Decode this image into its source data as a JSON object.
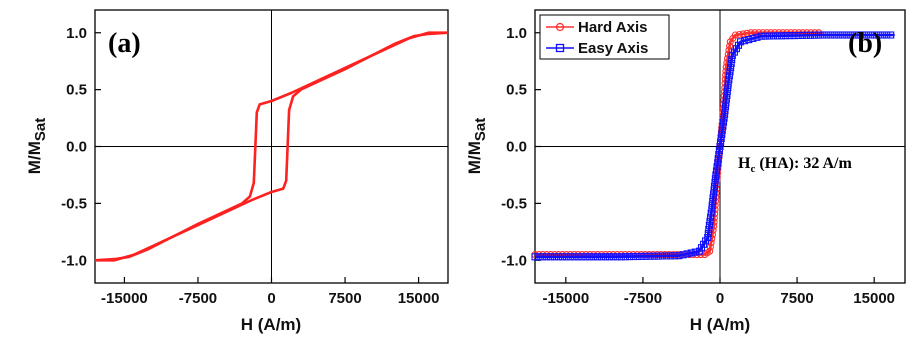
{
  "chart_data": [
    {
      "type": "line",
      "panel_label": "(a)",
      "xlabel": "H (A/m)",
      "ylabel": "M/M",
      "ylabel_sub": "Sat",
      "xlim": [
        -18000,
        18000
      ],
      "ylim": [
        -1.2,
        1.2
      ],
      "xticks": [
        -15000,
        -7500,
        0,
        7500,
        15000
      ],
      "xtick_labels": [
        "-15000",
        "-7500",
        "0",
        "7500",
        "15000"
      ],
      "yticks": [
        1.0,
        0.5,
        0.0,
        -0.5,
        -1.0
      ],
      "ytick_labels": [
        "1.0",
        "0.5",
        "0.0",
        "-0.5",
        "-1.0"
      ],
      "color": "#ff2020",
      "series": [
        {
          "branch": "descending",
          "x": [
            18000,
            16000,
            14000,
            12000,
            10000,
            8000,
            6000,
            4000,
            2000,
            0,
            -1200,
            -1500,
            -1800,
            -2200,
            -3000,
            -5000,
            -7500,
            -10000,
            -12500,
            -14500,
            -16000,
            -18000
          ],
          "y": [
            1.0,
            1.0,
            0.95,
            0.87,
            0.79,
            0.71,
            0.63,
            0.55,
            0.47,
            0.4,
            0.37,
            0.3,
            -0.32,
            -0.44,
            -0.5,
            -0.58,
            -0.68,
            -0.79,
            -0.9,
            -0.97,
            -0.99,
            -1.0
          ]
        },
        {
          "branch": "ascending",
          "x": [
            -18000,
            -16000,
            -14000,
            -12000,
            -10000,
            -8000,
            -6000,
            -4000,
            -2000,
            0,
            1200,
            1500,
            1800,
            2200,
            3000,
            5000,
            7500,
            10000,
            12500,
            14500,
            16000,
            18000
          ],
          "y": [
            -1.0,
            -1.0,
            -0.95,
            -0.87,
            -0.79,
            -0.71,
            -0.63,
            -0.55,
            -0.47,
            -0.4,
            -0.37,
            -0.3,
            0.32,
            0.44,
            0.5,
            0.58,
            0.68,
            0.79,
            0.9,
            0.97,
            0.99,
            1.0
          ]
        }
      ]
    },
    {
      "type": "line",
      "panel_label": "(b)",
      "xlabel": "H (A/m)",
      "ylabel": "M/M",
      "ylabel_sub": "Sat",
      "xlim": [
        -18000,
        18000
      ],
      "ylim": [
        -1.2,
        1.2
      ],
      "xticks": [
        -15000,
        -7500,
        0,
        7500,
        15000
      ],
      "xtick_labels": [
        "-15000",
        "-7500",
        "0",
        "7500",
        "15000"
      ],
      "yticks": [
        1.0,
        0.5,
        0.0,
        -0.5,
        -1.0
      ],
      "ytick_labels": [
        "1.0",
        "0.5",
        "0.0",
        "-0.5",
        "-1.0"
      ],
      "annotation": {
        "main": "H",
        "sub": "c",
        "rest": " (HA): 32 A/m"
      },
      "legend_position": "top-left",
      "series": [
        {
          "name": "Hard Axis",
          "color": "#ff3030",
          "marker": "circle",
          "x": [
            -18000,
            -10000,
            -3000,
            -1500,
            -1000,
            -600,
            -300,
            0,
            300,
            600,
            1000,
            1500,
            3000,
            10000
          ],
          "y": [
            -0.95,
            -0.95,
            -0.95,
            -0.95,
            -0.92,
            -0.7,
            -0.3,
            0.0,
            0.3,
            0.7,
            0.92,
            0.98,
            1.0,
            1.0
          ]
        },
        {
          "name": "Easy Axis",
          "color": "#1010ff",
          "marker": "square",
          "x": [
            -18000,
            -10000,
            -4000,
            -2000,
            -1200,
            -800,
            -400,
            0,
            400,
            800,
            1200,
            2000,
            4000,
            10000,
            17000
          ],
          "y": [
            -0.97,
            -0.97,
            -0.96,
            -0.92,
            -0.8,
            -0.55,
            -0.25,
            0.0,
            0.25,
            0.55,
            0.8,
            0.92,
            0.97,
            0.98,
            0.98
          ]
        }
      ]
    }
  ]
}
